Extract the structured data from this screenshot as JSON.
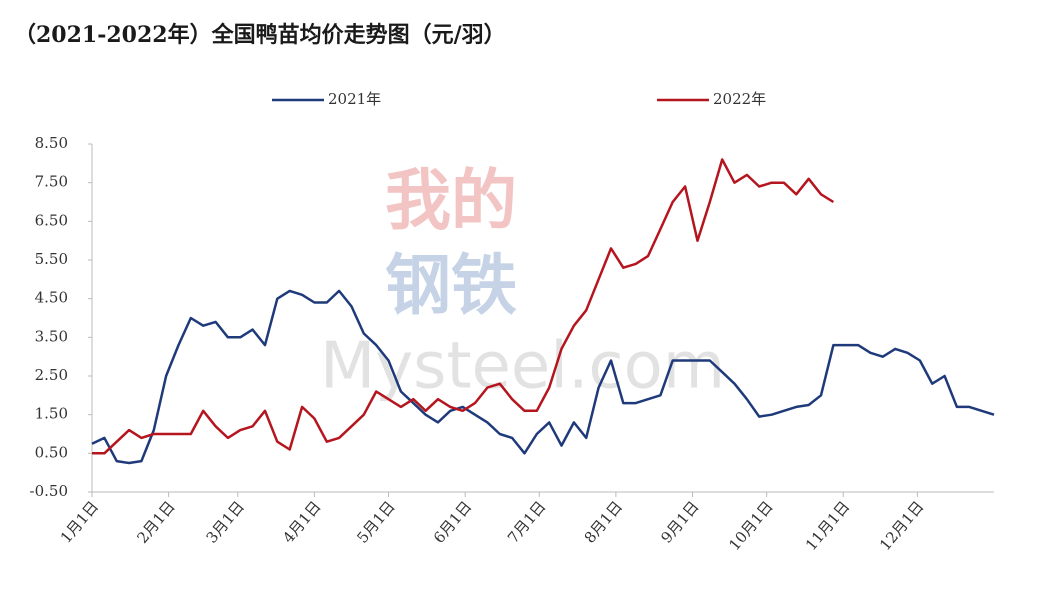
{
  "chart_data": {
    "type": "line",
    "title": "（2021-2022年）全国鸭苗均价走势图（元/羽）",
    "watermark": [
      "我的",
      "钢铁",
      "Mysteel.com"
    ],
    "x": [
      0,
      5,
      10,
      15,
      20,
      25,
      30,
      35,
      40,
      45,
      50,
      55,
      60,
      65,
      70,
      75,
      80,
      85,
      90,
      95,
      100,
      105,
      110,
      115,
      120,
      125,
      130,
      135,
      140,
      145,
      150,
      155,
      160,
      165,
      170,
      175,
      180,
      185,
      190,
      195,
      200,
      205,
      210,
      215,
      220,
      225,
      230,
      235,
      240,
      245,
      250,
      255,
      260,
      265,
      270,
      275,
      280,
      285,
      290,
      295,
      300,
      305,
      310,
      315,
      320,
      325,
      330,
      335,
      340,
      345,
      350,
      355,
      360,
      365
    ],
    "xlim": [
      0,
      365
    ],
    "xticks": [
      {
        "value": 0,
        "label": "1月1日"
      },
      {
        "value": 31,
        "label": "2月1日"
      },
      {
        "value": 59,
        "label": "3月1日"
      },
      {
        "value": 90,
        "label": "4月1日"
      },
      {
        "value": 120,
        "label": "5月1日"
      },
      {
        "value": 151,
        "label": "6月1日"
      },
      {
        "value": 181,
        "label": "7月1日"
      },
      {
        "value": 212,
        "label": "8月1日"
      },
      {
        "value": 243,
        "label": "9月1日"
      },
      {
        "value": 273,
        "label": "10月1日"
      },
      {
        "value": 304,
        "label": "11月1日"
      },
      {
        "value": 334,
        "label": "12月1日"
      }
    ],
    "ylim": [
      -0.5,
      8.5
    ],
    "yticks": [
      {
        "value": -0.5,
        "label": "-0.50"
      },
      {
        "value": 0.5,
        "label": "0.50"
      },
      {
        "value": 1.5,
        "label": "1.50"
      },
      {
        "value": 2.5,
        "label": "2.50"
      },
      {
        "value": 3.5,
        "label": "3.50"
      },
      {
        "value": 4.5,
        "label": "4.50"
      },
      {
        "value": 5.5,
        "label": "5.50"
      },
      {
        "value": 6.5,
        "label": "6.50"
      },
      {
        "value": 7.5,
        "label": "7.50"
      },
      {
        "value": 8.5,
        "label": "8.50"
      }
    ],
    "legend": "top",
    "series": [
      {
        "name": "2021年",
        "color": "#1f3a7a",
        "values": [
          0.75,
          0.9,
          0.3,
          0.25,
          0.3,
          1.1,
          2.5,
          3.3,
          4.0,
          3.8,
          3.9,
          3.5,
          3.5,
          3.7,
          3.3,
          4.5,
          4.7,
          4.6,
          4.4,
          4.4,
          4.7,
          4.3,
          3.6,
          3.3,
          2.9,
          2.1,
          1.8,
          1.5,
          1.3,
          1.6,
          1.7,
          1.5,
          1.3,
          1.0,
          0.9,
          0.5,
          1.0,
          1.3,
          0.7,
          1.3,
          0.9,
          2.2,
          2.9,
          1.8,
          1.8,
          1.9,
          2.0,
          2.9,
          2.9,
          2.9,
          2.9,
          2.6,
          2.3,
          1.9,
          1.45,
          1.5,
          1.6,
          1.7,
          1.75,
          2.0,
          3.3,
          3.3,
          3.3,
          3.1,
          3.0,
          3.2,
          3.1,
          2.9,
          2.3,
          2.5,
          1.7,
          1.7,
          1.6,
          1.5
        ]
      },
      {
        "name": "2022年",
        "color": "#b5151e",
        "values": [
          0.5,
          0.5,
          0.8,
          1.1,
          0.9,
          1.0,
          1.0,
          1.0,
          1.0,
          1.6,
          1.2,
          0.9,
          1.1,
          1.2,
          1.6,
          0.8,
          0.6,
          1.7,
          1.4,
          0.8,
          0.9,
          1.2,
          1.5,
          2.1,
          1.9,
          1.7,
          1.9,
          1.6,
          1.9,
          1.7,
          1.6,
          1.8,
          2.2,
          2.3,
          1.9,
          1.6,
          1.6,
          2.2,
          3.2,
          3.8,
          4.2,
          5.0,
          5.8,
          5.3,
          5.4,
          5.6,
          6.3,
          7.0,
          7.4,
          6.0,
          7.0,
          8.1,
          7.5,
          7.7,
          7.4,
          7.5,
          7.5,
          7.2,
          7.6,
          7.2,
          7.0,
          null,
          null,
          null,
          null,
          null,
          null,
          null,
          null,
          null,
          null,
          null,
          null,
          null
        ]
      }
    ]
  }
}
